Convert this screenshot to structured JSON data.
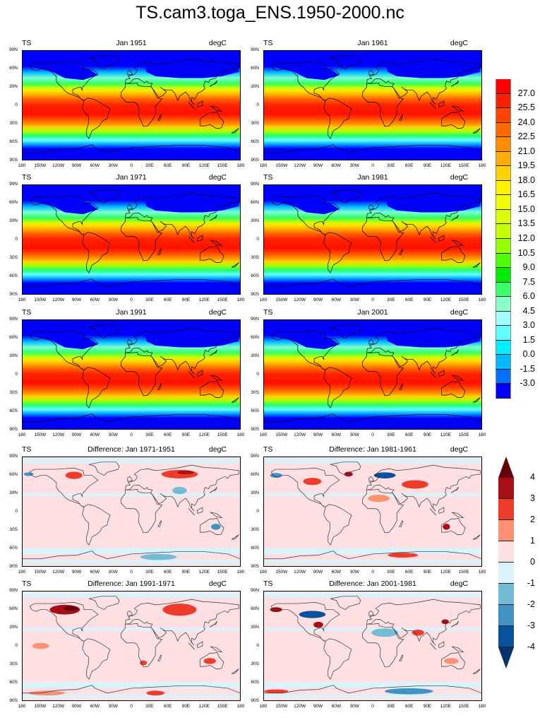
{
  "title": "TS.cam3.toga_ENS.1950-2000.nc",
  "panels": [
    {
      "id": "jan1951",
      "left": "TS",
      "center": "Jan 1951",
      "right": "degC",
      "kind": "abs"
    },
    {
      "id": "jan1961",
      "left": "TS",
      "center": "Jan 1961",
      "right": "degC",
      "kind": "abs"
    },
    {
      "id": "jan1971",
      "left": "TS",
      "center": "Jan 1971",
      "right": "degC",
      "kind": "abs"
    },
    {
      "id": "jan1981",
      "left": "TS",
      "center": "Jan 1981",
      "right": "degC",
      "kind": "abs"
    },
    {
      "id": "jan1991",
      "left": "TS",
      "center": "Jan 1991",
      "right": "degC",
      "kind": "abs"
    },
    {
      "id": "jan2001",
      "left": "TS",
      "center": "Jan 2001",
      "right": "degC",
      "kind": "abs"
    },
    {
      "id": "diff7151",
      "left": "TS",
      "center": "Difference: Jan 1971-1951",
      "right": "degC",
      "kind": "diff"
    },
    {
      "id": "diff8161",
      "left": "TS",
      "center": "Difference: Jan 1981-1961",
      "right": "degC",
      "kind": "diff"
    },
    {
      "id": "diff9171",
      "left": "TS",
      "center": "Difference: Jan 1991-1971",
      "right": "degC",
      "kind": "diff"
    },
    {
      "id": "diff0181",
      "left": "TS",
      "center": "Difference: Jan 2001-1981",
      "right": "degC",
      "kind": "diff"
    }
  ],
  "axes": {
    "lat_labels": [
      "90N",
      "60N",
      "30N",
      "0",
      "30S",
      "60S",
      "90S"
    ],
    "lon_labels": [
      "180",
      "150W",
      "120W",
      "90W",
      "60W",
      "30W",
      "0",
      "30E",
      "60E",
      "90E",
      "120E",
      "150E",
      "180"
    ]
  },
  "colorbar_abs": {
    "labels": [
      "27.0",
      "25.5",
      "24.0",
      "22.5",
      "21.0",
      "19.5",
      "18.0",
      "16.5",
      "15.0",
      "13.5",
      "12.0",
      "10.5",
      "9.0",
      "7.5",
      "6.0",
      "4.5",
      "3.0",
      "1.5",
      "0.0",
      "-1.5",
      "-3.0"
    ],
    "colors": [
      "#ff0000",
      "#ff2000",
      "#ff4500",
      "#ff6a00",
      "#ff8c00",
      "#ffae00",
      "#ffd200",
      "#fff200",
      "#f0ff00",
      "#dcff00",
      "#c8ff00",
      "#96ff00",
      "#4cff00",
      "#00ee00",
      "#3cff6c",
      "#8affc8",
      "#a0ffff",
      "#60ffff",
      "#00f0ff",
      "#00b8ff",
      "#0070ff",
      "#0000ff"
    ]
  },
  "colorbar_diff": {
    "labels": [
      "4",
      "3",
      "2",
      "1",
      "0",
      "-1",
      "-2",
      "-3",
      "-4"
    ],
    "colors": [
      "#67000d",
      "#a50f15",
      "#ef3b2c",
      "#fc9272",
      "#fee0e2",
      "#d9f2fb",
      "#74bcd6",
      "#4292c6",
      "#08519c",
      "#08306b"
    ]
  }
}
